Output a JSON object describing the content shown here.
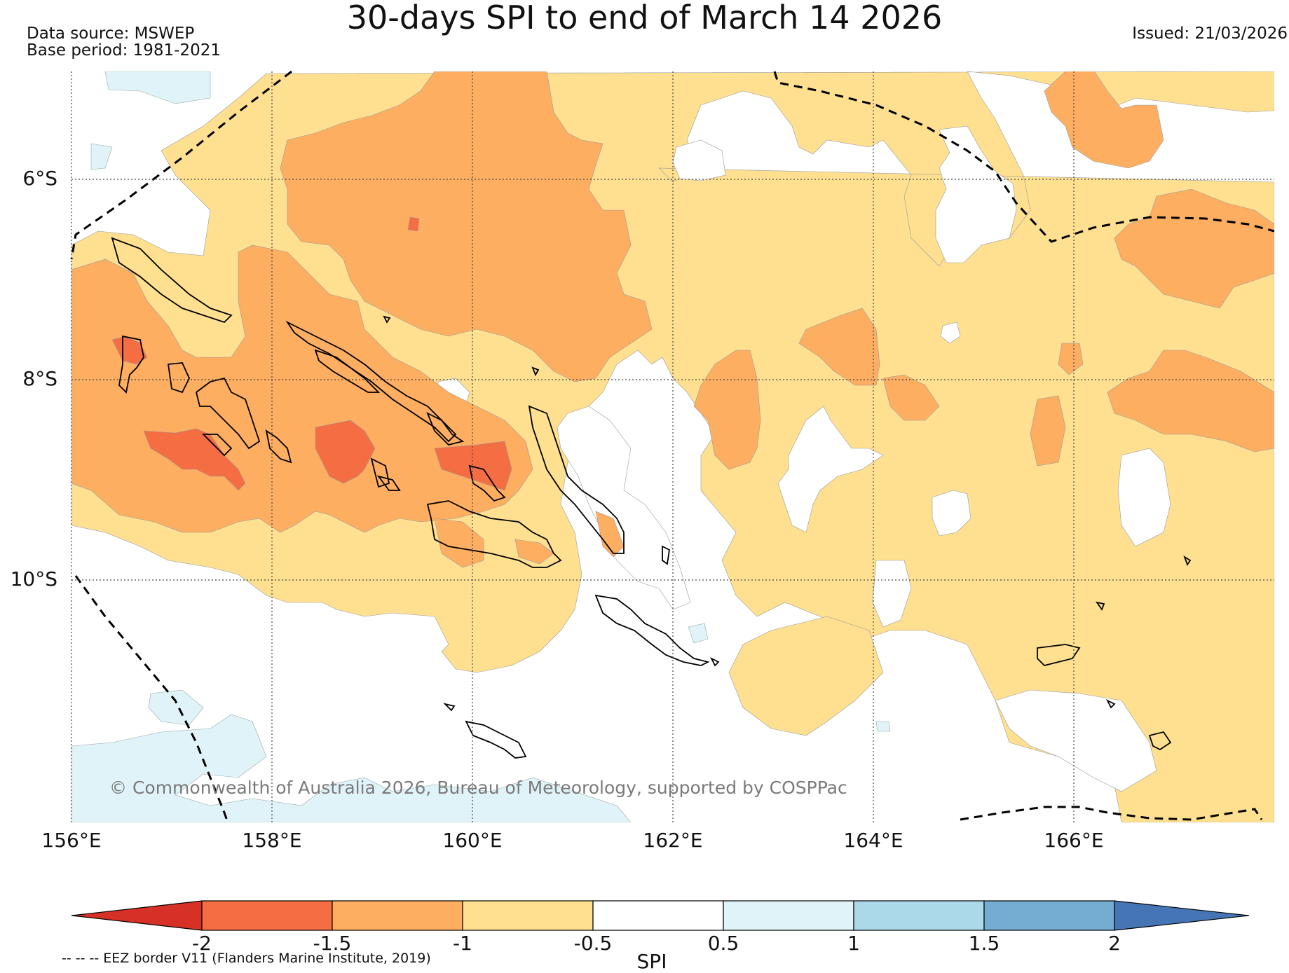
{
  "title": "30-days SPI to end of March 14 2026",
  "data_source": "Data source: MSWEP",
  "base_period": "Base period: 1981-2021",
  "issued": "Issued: 21/03/2026",
  "watermark": "© Commonwealth of Australia 2026, Bureau of Meteorology, supported by COSPPac",
  "map": {
    "lon_range": [
      156,
      168
    ],
    "lat_range": [
      -5,
      -12.5
    ],
    "lat_ticks": [
      "6°S",
      "8°S",
      "10°S"
    ],
    "lon_ticks": [
      "156°E",
      "158°E",
      "160°E",
      "162°E",
      "164°E",
      "166°E"
    ],
    "grid": "dotted"
  },
  "colorbar": {
    "label": "SPI",
    "ticks": [
      "-2",
      "-1.5",
      "-1",
      "-0.5",
      "0.5",
      "1",
      "1.5",
      "2"
    ],
    "colors": [
      "#d73027",
      "#f46d43",
      "#fdae61",
      "#fee090",
      "#ffffff",
      "#e0f3f8",
      "#abd9e9",
      "#74add1",
      "#4575b4"
    ]
  },
  "legend_note": "-- -- -- EEZ border V11 (Flanders Marine Institute, 2019)"
}
